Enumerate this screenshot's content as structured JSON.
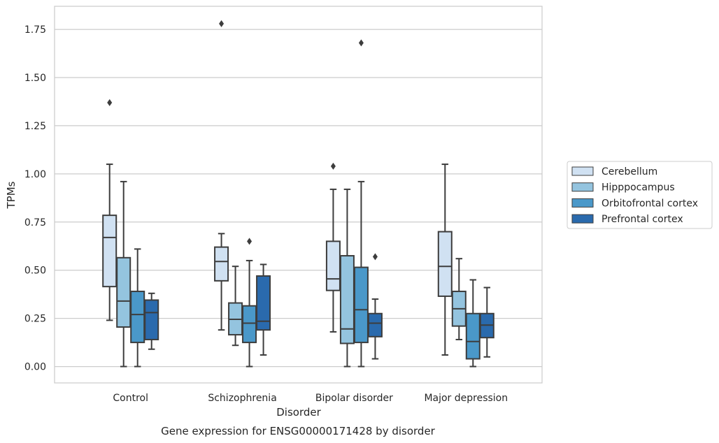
{
  "chart_data": {
    "type": "box",
    "title": "",
    "caption": "Gene expression for ENSG00000171428 by disorder",
    "xlabel": "Disorder",
    "ylabel": "TPMs",
    "ylim": [
      -0.085,
      1.87
    ],
    "yticks": [
      "0.00",
      "0.25",
      "0.50",
      "0.75",
      "1.00",
      "1.25",
      "1.50",
      "1.75"
    ],
    "grid": true,
    "legend_position": "right",
    "categories": [
      "Control",
      "Schizophrenia",
      "Bipolar disorder",
      "Major depression"
    ],
    "series": [
      {
        "name": "Cerebellum",
        "color": "#d0e1f2",
        "boxes": [
          {
            "whislo": 0.24,
            "q1": 0.415,
            "med": 0.67,
            "q3": 0.785,
            "whishi": 1.05,
            "fliers": [
              1.37
            ]
          },
          {
            "whislo": 0.19,
            "q1": 0.445,
            "med": 0.545,
            "q3": 0.62,
            "whishi": 0.69,
            "fliers": [
              1.78
            ]
          },
          {
            "whislo": 0.18,
            "q1": 0.395,
            "med": 0.455,
            "q3": 0.65,
            "whishi": 0.92,
            "fliers": [
              1.04
            ]
          },
          {
            "whislo": 0.06,
            "q1": 0.365,
            "med": 0.52,
            "q3": 0.7,
            "whishi": 1.05,
            "fliers": []
          }
        ]
      },
      {
        "name": "Hipppocampus",
        "color": "#94c4df",
        "boxes": [
          {
            "whislo": 0.0,
            "q1": 0.205,
            "med": 0.34,
            "q3": 0.565,
            "whishi": 0.96,
            "fliers": []
          },
          {
            "whislo": 0.11,
            "q1": 0.165,
            "med": 0.245,
            "q3": 0.33,
            "whishi": 0.52,
            "fliers": []
          },
          {
            "whislo": 0.0,
            "q1": 0.12,
            "med": 0.195,
            "q3": 0.575,
            "whishi": 0.92,
            "fliers": []
          },
          {
            "whislo": 0.14,
            "q1": 0.21,
            "med": 0.3,
            "q3": 0.39,
            "whishi": 0.56,
            "fliers": []
          }
        ]
      },
      {
        "name": "Orbitofrontal cortex",
        "color": "#4a98c9",
        "boxes": [
          {
            "whislo": 0.0,
            "q1": 0.125,
            "med": 0.27,
            "q3": 0.39,
            "whishi": 0.61,
            "fliers": []
          },
          {
            "whislo": 0.0,
            "q1": 0.125,
            "med": 0.225,
            "q3": 0.315,
            "whishi": 0.55,
            "fliers": [
              0.65
            ]
          },
          {
            "whislo": 0.0,
            "q1": 0.125,
            "med": 0.295,
            "q3": 0.515,
            "whishi": 0.96,
            "fliers": [
              1.68
            ]
          },
          {
            "whislo": 0.0,
            "q1": 0.04,
            "med": 0.13,
            "q3": 0.275,
            "whishi": 0.45,
            "fliers": []
          }
        ]
      },
      {
        "name": "Prefrontal cortex",
        "color": "#2a6aad",
        "boxes": [
          {
            "whislo": 0.09,
            "q1": 0.14,
            "med": 0.28,
            "q3": 0.345,
            "whishi": 0.38,
            "fliers": []
          },
          {
            "whislo": 0.06,
            "q1": 0.19,
            "med": 0.235,
            "q3": 0.47,
            "whishi": 0.53,
            "fliers": []
          },
          {
            "whislo": 0.04,
            "q1": 0.155,
            "med": 0.225,
            "q3": 0.275,
            "whishi": 0.35,
            "fliers": [
              0.57
            ]
          },
          {
            "whislo": 0.05,
            "q1": 0.15,
            "med": 0.215,
            "q3": 0.275,
            "whishi": 0.41,
            "fliers": []
          }
        ]
      }
    ]
  }
}
